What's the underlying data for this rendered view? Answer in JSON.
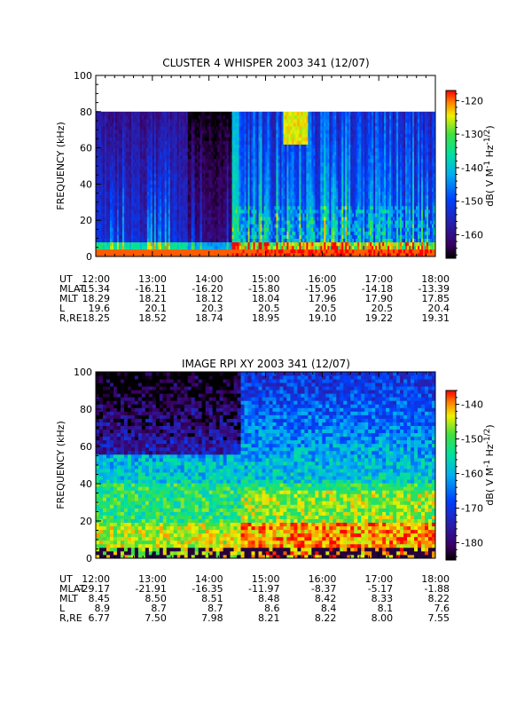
{
  "chart_data": [
    {
      "type": "heatmap",
      "title": "CLUSTER 4 WHISPER 2003 341 (12/07)",
      "ylabel": "FREQUENCY (kHz)",
      "ylim": [
        0,
        100
      ],
      "y_ticks": [
        "0",
        "20",
        "40",
        "60",
        "80",
        "100"
      ],
      "x_ticks": [
        "12:00",
        "13:00",
        "14:00",
        "15:00",
        "16:00",
        "17:00",
        "18:00"
      ],
      "x_values": [
        12,
        13,
        14,
        15,
        16,
        17,
        18
      ],
      "colorbar": {
        "label": "dB( V M^-1 Hz^-1/2 )",
        "label_parts": {
          "pre": "dB( V M",
          "e1": "-1",
          "mid": " Hz",
          "e2": "-1/2",
          "post": ")"
        },
        "range": [
          -167,
          -117
        ],
        "ticks": [
          "-120",
          "-130",
          "-140",
          "-150",
          "-160"
        ],
        "tick_values": [
          -120,
          -130,
          -140,
          -150,
          -160
        ]
      },
      "data_max_frequency": 80,
      "ephemeris": [
        {
          "label": "UT",
          "values": [
            "12:00",
            "13:00",
            "14:00",
            "15:00",
            "16:00",
            "17:00",
            "18:00"
          ]
        },
        {
          "label": "MLAT",
          "values": [
            "-15.34",
            "-16.11",
            "-16.20",
            "-15.80",
            "-15.05",
            "-14.18",
            "-13.39"
          ]
        },
        {
          "label": "MLT",
          "values": [
            "18.29",
            "18.21",
            "18.12",
            "18.04",
            "17.96",
            "17.90",
            "17.85"
          ]
        },
        {
          "label": "L",
          "values": [
            "19.6",
            "20.1",
            "20.3",
            "20.5",
            "20.5",
            "20.5",
            "20.4"
          ]
        },
        {
          "label": "R,RE",
          "values": [
            "18.25",
            "18.52",
            "18.74",
            "18.95",
            "19.10",
            "19.22",
            "19.31"
          ]
        }
      ]
    },
    {
      "type": "heatmap",
      "title": "IMAGE RPI XY 2003 341 (12/07)",
      "ylabel": "FREQUENCY (kHz)",
      "ylim": [
        0,
        100
      ],
      "y_ticks": [
        "0",
        "20",
        "40",
        "60",
        "80",
        "100"
      ],
      "x_ticks": [
        "12:00",
        "13:00",
        "14:00",
        "15:00",
        "16:00",
        "17:00",
        "18:00"
      ],
      "x_values": [
        12,
        13,
        14,
        15,
        16,
        17,
        18
      ],
      "colorbar": {
        "label": "dB( V M^-1 Hz^-1/2 )",
        "label_parts": {
          "pre": "dB( V M",
          "e1": "-1",
          "mid": " Hz",
          "e2": "-1/2",
          "post": ")"
        },
        "range": [
          -185,
          -136
        ],
        "ticks": [
          "-140",
          "-150",
          "-160",
          "-170",
          "-180"
        ],
        "tick_values": [
          -140,
          -150,
          -160,
          -170,
          -180
        ]
      },
      "ephemeris": [
        {
          "label": "UT",
          "values": [
            "12:00",
            "13:00",
            "14:00",
            "15:00",
            "16:00",
            "17:00",
            "18:00"
          ]
        },
        {
          "label": "MLAT",
          "values": [
            "-29.17",
            "-21.91",
            "-16.35",
            "-11.97",
            "-8.37",
            "-5.17",
            "-1.88"
          ]
        },
        {
          "label": "MLT",
          "values": [
            "8.45",
            "8.50",
            "8.51",
            "8.48",
            "8.42",
            "8.33",
            "8.22"
          ]
        },
        {
          "label": "L",
          "values": [
            "8.9",
            "8.7",
            "8.7",
            "8.6",
            "8.4",
            "8.1",
            "7.6"
          ]
        },
        {
          "label": "R,RE",
          "values": [
            "6.77",
            "7.50",
            "7.98",
            "8.21",
            "8.22",
            "8.00",
            "7.55"
          ]
        }
      ]
    }
  ]
}
